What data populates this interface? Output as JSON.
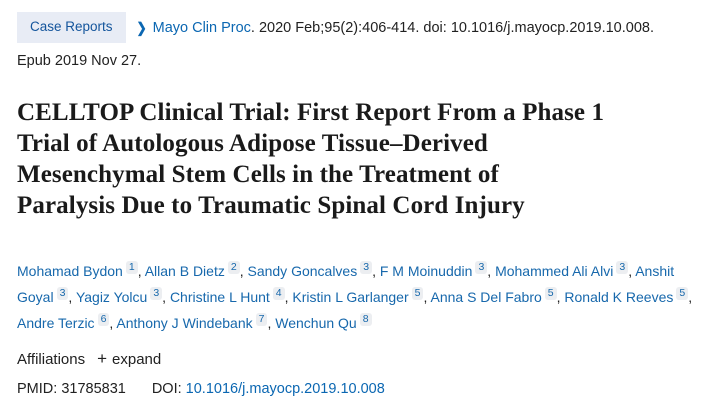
{
  "badge": {
    "label": "Case Reports"
  },
  "citation": {
    "chevron_glyph": "❯",
    "journal": "Mayo Clin Proc",
    "details": ". 2020 Feb;95(2):406-414. doi: 10.1016/j.mayocp.2019.10.008.",
    "epub": "Epub 2019 Nov 27."
  },
  "title_lines": [
    "CELLTOP Clinical Trial: First Report From a Phase 1",
    "Trial of Autologous Adipose Tissue–Derived",
    "Mesenchymal Stem Cells in the Treatment of",
    "Paralysis Due to Traumatic Spinal Cord Injury"
  ],
  "authors": [
    {
      "name": "Mohamad Bydon",
      "sup": "1"
    },
    {
      "name": "Allan B Dietz",
      "sup": "2"
    },
    {
      "name": "Sandy Goncalves",
      "sup": "3"
    },
    {
      "name": "F M Moinuddin",
      "sup": "3"
    },
    {
      "name": "Mohammed Ali Alvi",
      "sup": "3"
    },
    {
      "name": "Anshit Goyal",
      "sup": "3"
    },
    {
      "name": "Yagiz Yolcu",
      "sup": "3"
    },
    {
      "name": "Christine L Hunt",
      "sup": "4"
    },
    {
      "name": "Kristin L Garlanger",
      "sup": "5"
    },
    {
      "name": "Anna S Del Fabro",
      "sup": "5"
    },
    {
      "name": "Ronald K Reeves",
      "sup": "5"
    },
    {
      "name": "Andre Terzic",
      "sup": "6"
    },
    {
      "name": "Anthony J Windebank",
      "sup": "7"
    },
    {
      "name": "Wenchun Qu",
      "sup": "8"
    }
  ],
  "affiliations": {
    "label": "Affiliations",
    "expand_icon": "+",
    "expand_label": "expand"
  },
  "identifiers": {
    "pmid_label": "PMID:",
    "pmid_value": "31785831",
    "doi_label": "DOI:",
    "doi_value": "10.1016/j.mayocp.2019.10.008"
  },
  "colors": {
    "link_blue": "#0b67b2",
    "badge_bg": "#e8ecf5",
    "badge_text": "#14559c",
    "body_text": "#212121"
  }
}
